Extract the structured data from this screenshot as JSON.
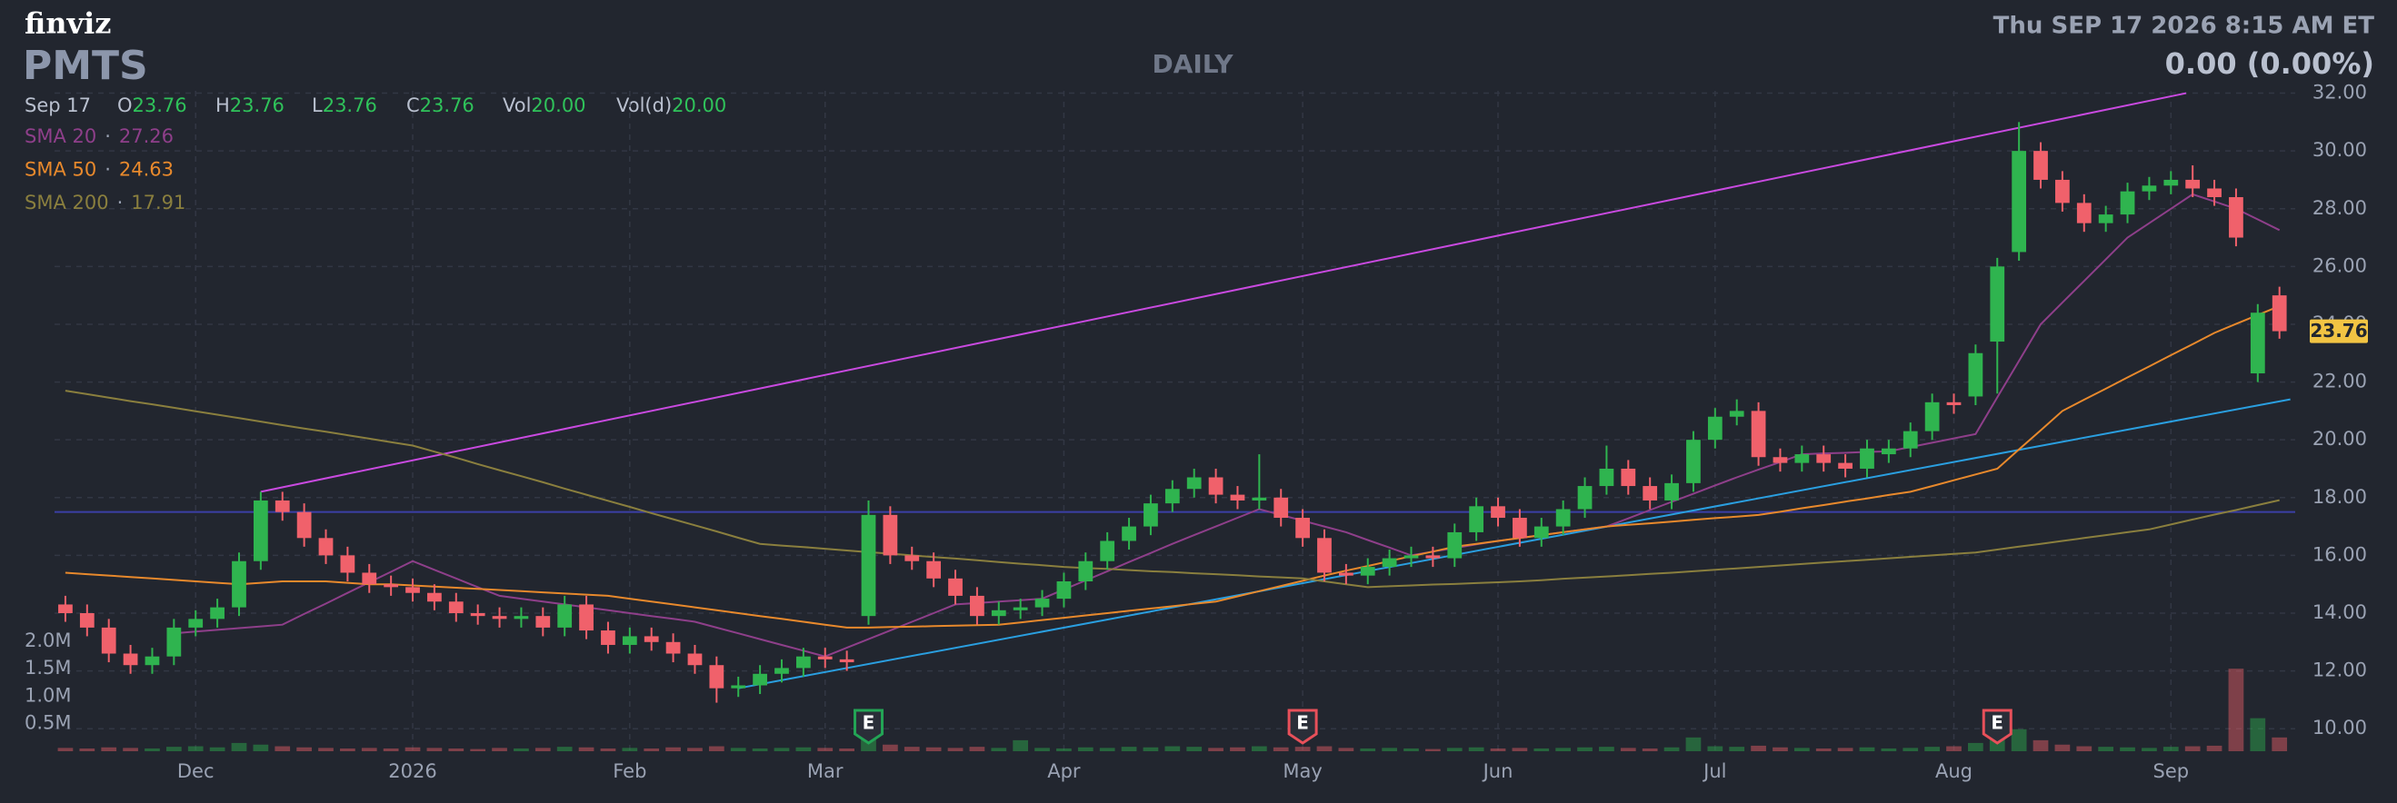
{
  "header": {
    "logo": "finviz",
    "ticker": "PMTS",
    "period": "DAILY",
    "datetime": "Thu SEP 17 2026 8:15 AM ET",
    "change": "0.00 (0.00%)",
    "quote": {
      "date": "Sep 17",
      "fields": [
        {
          "label": "O",
          "value": "23.76"
        },
        {
          "label": "H",
          "value": "23.76"
        },
        {
          "label": "L",
          "value": "23.76"
        },
        {
          "label": "C",
          "value": "23.76"
        },
        {
          "label": "Vol",
          "value": "20.00"
        },
        {
          "label": "Vol(d)",
          "value": "20.00"
        }
      ]
    }
  },
  "chart_data": {
    "type": "candlestick",
    "categories": [
      null,
      null,
      null,
      null,
      null,
      null,
      "Dec",
      null,
      null,
      null,
      null,
      null,
      null,
      null,
      null,
      null,
      "2026",
      null,
      null,
      null,
      null,
      null,
      null,
      null,
      null,
      null,
      "Feb",
      null,
      null,
      null,
      null,
      null,
      null,
      null,
      null,
      "Mar",
      null,
      null,
      null,
      null,
      null,
      null,
      null,
      null,
      null,
      null,
      "Apr",
      null,
      null,
      null,
      null,
      null,
      null,
      null,
      null,
      null,
      null,
      "May",
      null,
      null,
      null,
      null,
      null,
      null,
      null,
      null,
      "Jun",
      null,
      null,
      null,
      null,
      null,
      null,
      null,
      null,
      null,
      "Jul",
      null,
      null,
      null,
      null,
      null,
      null,
      null,
      null,
      null,
      null,
      "Aug",
      null,
      null,
      null,
      null,
      null,
      null,
      null,
      null,
      null,
      "Sep",
      null,
      null,
      null,
      null,
      null
    ],
    "open": [
      14.3,
      14.0,
      13.5,
      12.6,
      12.2,
      12.5,
      13.5,
      13.8,
      14.2,
      15.8,
      17.9,
      17.5,
      16.6,
      16.0,
      15.4,
      15.0,
      14.9,
      14.7,
      14.4,
      14.0,
      13.9,
      13.8,
      13.9,
      13.5,
      14.3,
      13.4,
      12.9,
      13.2,
      13.0,
      12.6,
      12.2,
      11.4,
      11.5,
      11.9,
      12.1,
      12.5,
      12.4,
      13.9,
      17.4,
      16.0,
      15.8,
      15.2,
      14.6,
      13.9,
      14.1,
      14.2,
      14.5,
      15.1,
      15.8,
      16.5,
      17.0,
      17.8,
      18.3,
      18.7,
      18.1,
      17.9,
      18.0,
      17.3,
      16.6,
      15.4,
      15.3,
      15.6,
      15.9,
      16.0,
      15.9,
      16.8,
      17.7,
      17.3,
      16.6,
      17.0,
      17.6,
      18.4,
      19.0,
      18.4,
      17.9,
      18.5,
      20.0,
      20.8,
      21.0,
      19.4,
      19.2,
      19.5,
      19.2,
      19.0,
      19.5,
      19.7,
      20.3,
      21.3,
      21.5,
      23.4,
      26.5,
      30.0,
      29.0,
      28.2,
      27.5,
      27.8,
      28.6,
      28.8,
      29.0,
      28.7,
      28.4,
      22.3,
      25.0
    ],
    "high": [
      14.6,
      14.3,
      13.8,
      12.9,
      12.8,
      13.8,
      14.1,
      14.5,
      16.1,
      18.2,
      18.2,
      17.8,
      16.9,
      16.3,
      15.7,
      15.3,
      15.2,
      15.0,
      14.7,
      14.3,
      14.2,
      14.2,
      14.2,
      14.6,
      14.6,
      13.7,
      13.5,
      13.5,
      13.3,
      12.9,
      12.5,
      11.8,
      12.2,
      12.4,
      12.8,
      12.8,
      12.7,
      17.9,
      17.7,
      16.3,
      16.1,
      15.5,
      14.9,
      14.4,
      14.5,
      14.8,
      15.4,
      16.1,
      16.8,
      17.3,
      18.1,
      18.6,
      19.0,
      19.0,
      18.4,
      19.5,
      18.3,
      17.6,
      16.9,
      15.7,
      15.9,
      16.2,
      16.3,
      16.3,
      17.1,
      18.0,
      18.0,
      17.6,
      17.3,
      17.9,
      18.7,
      19.8,
      19.3,
      18.7,
      18.8,
      20.3,
      21.1,
      21.4,
      21.3,
      19.7,
      19.8,
      19.8,
      19.5,
      20.0,
      20.0,
      20.6,
      21.6,
      21.6,
      23.3,
      26.3,
      31.0,
      30.3,
      29.3,
      28.5,
      28.1,
      28.9,
      29.1,
      29.3,
      29.5,
      29.0,
      28.7,
      24.7,
      25.3
    ],
    "low": [
      13.7,
      13.2,
      12.3,
      11.9,
      11.9,
      12.2,
      13.2,
      13.5,
      13.9,
      15.5,
      17.2,
      16.3,
      15.7,
      15.1,
      14.7,
      14.6,
      14.4,
      14.1,
      13.7,
      13.6,
      13.5,
      13.5,
      13.2,
      13.2,
      13.1,
      12.6,
      12.6,
      12.7,
      12.3,
      11.9,
      10.9,
      11.1,
      11.2,
      11.6,
      11.8,
      12.1,
      12.0,
      13.6,
      15.7,
      15.5,
      14.9,
      14.3,
      13.6,
      13.6,
      13.8,
      13.9,
      14.2,
      14.8,
      15.5,
      16.2,
      16.7,
      17.5,
      18.0,
      17.8,
      17.6,
      17.6,
      17.0,
      16.3,
      15.1,
      15.0,
      15.0,
      15.3,
      15.6,
      15.6,
      15.6,
      16.5,
      17.0,
      16.3,
      16.3,
      16.7,
      17.3,
      18.1,
      18.1,
      17.6,
      17.6,
      18.2,
      19.7,
      20.5,
      19.1,
      18.9,
      18.9,
      18.9,
      18.7,
      18.7,
      19.2,
      19.4,
      20.0,
      20.9,
      21.2,
      21.6,
      26.2,
      28.7,
      27.9,
      27.2,
      27.2,
      27.5,
      28.3,
      28.5,
      28.4,
      28.1,
      26.7,
      22.0,
      23.5
    ],
    "close": [
      14.0,
      13.5,
      12.6,
      12.2,
      12.5,
      13.5,
      13.8,
      14.2,
      15.8,
      17.9,
      17.5,
      16.6,
      16.0,
      15.4,
      15.0,
      14.9,
      14.7,
      14.4,
      14.0,
      13.9,
      13.8,
      13.9,
      13.5,
      14.3,
      13.4,
      12.9,
      13.2,
      13.0,
      12.6,
      12.2,
      11.4,
      11.5,
      11.9,
      12.1,
      12.5,
      12.4,
      12.3,
      17.4,
      16.0,
      15.8,
      15.2,
      14.6,
      13.9,
      14.1,
      14.2,
      14.5,
      15.1,
      15.8,
      16.5,
      17.0,
      17.8,
      18.3,
      18.7,
      18.1,
      17.9,
      18.0,
      17.3,
      16.6,
      15.4,
      15.3,
      15.6,
      15.9,
      16.0,
      15.9,
      16.8,
      17.7,
      17.3,
      16.6,
      17.0,
      17.6,
      18.4,
      19.0,
      18.4,
      17.9,
      18.5,
      20.0,
      20.8,
      21.0,
      19.4,
      19.2,
      19.5,
      19.2,
      19.0,
      19.7,
      19.7,
      20.3,
      21.3,
      21.2,
      23.0,
      26.0,
      30.0,
      29.0,
      28.2,
      27.5,
      27.8,
      28.6,
      28.8,
      29.0,
      28.7,
      28.4,
      27.0,
      24.4,
      23.76
    ],
    "volume": [
      60000,
      50000,
      70000,
      60000,
      50000,
      80000,
      90000,
      70000,
      150000,
      120000,
      90000,
      70000,
      60000,
      50000,
      60000,
      50000,
      70000,
      60000,
      50000,
      40000,
      60000,
      50000,
      60000,
      80000,
      70000,
      50000,
      60000,
      50000,
      70000,
      60000,
      90000,
      60000,
      50000,
      60000,
      70000,
      60000,
      50000,
      220000,
      120000,
      80000,
      70000,
      60000,
      80000,
      60000,
      200000,
      60000,
      50000,
      70000,
      60000,
      80000,
      70000,
      90000,
      80000,
      60000,
      70000,
      90000,
      70000,
      80000,
      90000,
      60000,
      50000,
      60000,
      50000,
      40000,
      60000,
      70000,
      50000,
      60000,
      50000,
      60000,
      70000,
      80000,
      60000,
      50000,
      70000,
      250000,
      90000,
      80000,
      100000,
      70000,
      60000,
      50000,
      60000,
      70000,
      50000,
      60000,
      80000,
      90000,
      150000,
      300000,
      400000,
      200000,
      120000,
      90000,
      80000,
      70000,
      60000,
      80000,
      90000,
      100000,
      1500000,
      600000,
      250000
    ],
    "up_color": "#2fb44f",
    "down_color": "#f0616b",
    "ylim": [
      9.22,
      32.08
    ],
    "yticks": [
      {
        "value": 10,
        "label": "10.00"
      },
      {
        "value": 12,
        "label": "12.00"
      },
      {
        "value": 14,
        "label": "14.00"
      },
      {
        "value": 16,
        "label": "16.00"
      },
      {
        "value": 18,
        "label": "18.00"
      },
      {
        "value": 20,
        "label": "20.00"
      },
      {
        "value": 22,
        "label": "22.00"
      },
      {
        "value": 24,
        "label": "24.00"
      },
      {
        "value": 26,
        "label": "26.00"
      },
      {
        "value": 28,
        "label": "28.00"
      },
      {
        "value": 30,
        "label": "30.00"
      },
      {
        "value": 32,
        "label": "32.00"
      }
    ],
    "volume_ylim": [
      0,
      12000000
    ],
    "volume_ticks": [
      {
        "value": 500000,
        "label": "0.5M"
      },
      {
        "value": 1000000,
        "label": "1.0M"
      },
      {
        "value": 1500000,
        "label": "1.5M"
      },
      {
        "value": 2000000,
        "label": "2.0M"
      }
    ],
    "grid": true,
    "legend_separator": "·",
    "series": [
      {
        "name": "SMA 20",
        "color": "#8e3f8a",
        "values": [
          null,
          null,
          null,
          null,
          null,
          13.3,
          13.36,
          13.42,
          13.48,
          13.54,
          13.6,
          13.97,
          14.33,
          14.7,
          15.07,
          15.43,
          15.8,
          15.5,
          15.2,
          14.9,
          14.6,
          14.5,
          14.4,
          14.3,
          14.2,
          14.1,
          14.0,
          13.9,
          13.8,
          13.7,
          13.5,
          13.3,
          13.1,
          12.9,
          12.7,
          12.5,
          12.8,
          13.1,
          13.4,
          13.7,
          14.0,
          14.3,
          14.35,
          14.4,
          14.45,
          14.5,
          14.82,
          15.13,
          15.45,
          15.77,
          16.08,
          16.4,
          16.7,
          17.0,
          17.3,
          17.6,
          17.4,
          17.2,
          17.0,
          16.8,
          16.53,
          16.27,
          16.0,
          16.13,
          16.25,
          16.38,
          16.5,
          16.6,
          16.7,
          16.8,
          16.9,
          17.0,
          17.28,
          17.57,
          17.85,
          18.13,
          18.42,
          18.7,
          18.97,
          19.23,
          19.5,
          19.53,
          19.55,
          19.58,
          19.6,
          19.75,
          19.9,
          20.05,
          20.2,
          21.47,
          22.73,
          24.0,
          24.75,
          25.5,
          26.25,
          27.0,
          27.5,
          28.0,
          28.5,
          28.25,
          28.0,
          27.63,
          27.26
        ]
      },
      {
        "name": "SMA 50",
        "color": "#e8892c",
        "values": [
          15.4,
          15.35,
          15.3,
          15.25,
          15.2,
          15.15,
          15.1,
          15.05,
          15.0,
          15.05,
          15.1,
          15.1,
          15.1,
          15.05,
          15.0,
          15.0,
          14.96,
          14.92,
          14.88,
          14.84,
          14.8,
          14.76,
          14.72,
          14.68,
          14.64,
          14.6,
          14.5,
          14.4,
          14.3,
          14.2,
          14.1,
          14.0,
          13.9,
          13.8,
          13.7,
          13.6,
          13.5,
          13.5,
          13.52,
          13.53,
          13.55,
          13.57,
          13.58,
          13.6,
          13.68,
          13.76,
          13.84,
          13.92,
          14.0,
          14.08,
          14.16,
          14.24,
          14.32,
          14.4,
          14.58,
          14.76,
          14.94,
          15.12,
          15.3,
          15.47,
          15.63,
          15.8,
          15.97,
          16.13,
          16.3,
          16.4,
          16.5,
          16.6,
          16.7,
          16.8,
          16.9,
          17.0,
          17.06,
          17.11,
          17.17,
          17.23,
          17.29,
          17.34,
          17.4,
          17.51,
          17.63,
          17.74,
          17.86,
          17.97,
          18.09,
          18.2,
          18.4,
          18.6,
          18.8,
          19.0,
          19.67,
          20.33,
          21.0,
          21.39,
          21.77,
          22.16,
          22.54,
          22.93,
          23.31,
          23.7,
          24.01,
          24.32,
          24.63
        ]
      },
      {
        "name": "SMA 200",
        "color": "#8a7f3e",
        "values": [
          21.7,
          21.58,
          21.46,
          21.34,
          21.23,
          21.11,
          20.99,
          20.87,
          20.75,
          20.63,
          20.51,
          20.39,
          20.28,
          20.16,
          20.04,
          19.92,
          19.8,
          19.59,
          19.38,
          19.16,
          18.95,
          18.74,
          18.53,
          18.31,
          18.1,
          17.89,
          17.68,
          17.46,
          17.25,
          17.04,
          16.83,
          16.61,
          16.4,
          16.34,
          16.29,
          16.23,
          16.17,
          16.11,
          16.06,
          16.0,
          15.94,
          15.89,
          15.83,
          15.77,
          15.71,
          15.66,
          15.6,
          15.56,
          15.53,
          15.49,
          15.45,
          15.42,
          15.38,
          15.35,
          15.31,
          15.27,
          15.24,
          15.2,
          15.1,
          15.0,
          14.9,
          14.93,
          14.96,
          14.99,
          15.01,
          15.04,
          15.07,
          15.1,
          15.14,
          15.19,
          15.23,
          15.27,
          15.31,
          15.36,
          15.4,
          15.45,
          15.5,
          15.55,
          15.6,
          15.65,
          15.7,
          15.75,
          15.8,
          15.85,
          15.9,
          15.95,
          16.0,
          16.05,
          16.1,
          16.2,
          16.3,
          16.4,
          16.5,
          16.6,
          16.7,
          16.8,
          16.9,
          17.07,
          17.24,
          17.41,
          17.57,
          17.74,
          17.91
        ]
      }
    ],
    "hline": {
      "value": 17.5,
      "color": "#3b3fa6"
    },
    "trendlines": [
      {
        "color": "#c94ae0",
        "start": [
          9,
          18.2
        ],
        "end": [
          97.7,
          32
        ]
      },
      {
        "color": "#2a9fe0",
        "start": [
          31,
          11.4
        ],
        "end": [
          102.5,
          21.4
        ]
      }
    ],
    "events": [
      {
        "index": 37,
        "label": "E",
        "color": "#23a455"
      },
      {
        "index": 57,
        "label": "E",
        "color": "#e8505a"
      },
      {
        "index": 89,
        "label": "E",
        "color": "#e8505a"
      }
    ],
    "last_price_color": "#f2c443"
  }
}
